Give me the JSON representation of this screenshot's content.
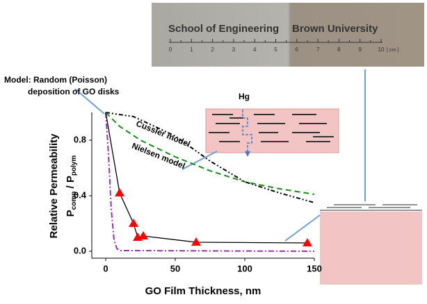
{
  "chart_data": {
    "type": "line",
    "annotation_model": [
      "Model: Random (Poisson)",
      "deposition of GO disks"
    ],
    "annotation_hg": "Hg",
    "xlabel": "GO Film Thickness, nm",
    "ylabel": "Relative Permeability",
    "ylabel2": [
      "P",
      "comp",
      " / P",
      "polym"
    ],
    "xlim": [
      -10,
      150
    ],
    "ylim": [
      -0.05,
      1.0
    ],
    "xticks": [
      0,
      50,
      100,
      150
    ],
    "yticks": [
      {
        "value": 0,
        "label": "0.0"
      },
      0.4,
      0.8
    ],
    "series": [
      {
        "name": "Cussler model",
        "color": "#000000",
        "dash": "6 3 2 3 2 3",
        "x": [
          0,
          20,
          50,
          75,
          100,
          125,
          150
        ],
        "values": [
          1.0,
          0.97,
          0.83,
          0.65,
          0.5,
          0.42,
          0.35
        ]
      },
      {
        "name": "Nielsen model",
        "color": "#1a8a1a",
        "dash": "8 5",
        "x": [
          0,
          10,
          25,
          50,
          75,
          100,
          125,
          150
        ],
        "values": [
          1.0,
          0.9,
          0.8,
          0.68,
          0.58,
          0.5,
          0.45,
          0.41
        ]
      },
      {
        "color": "#9933aa",
        "dash": "8 3 2 3",
        "x": [
          0,
          2,
          4,
          6,
          8,
          10,
          150
        ],
        "values": [
          1.0,
          0.7,
          0.3,
          0.08,
          0.02,
          0.005,
          0
        ]
      },
      {
        "color": "#000000",
        "x": [
          0,
          10,
          20,
          23,
          27,
          65,
          145
        ],
        "values": [
          1.0,
          0.42,
          0.2,
          0.1,
          0.11,
          0.065,
          0.06
        ]
      },
      {
        "color": "#ff0000",
        "marker": "triangle",
        "x": [
          10,
          20,
          23,
          27,
          65,
          145
        ],
        "values": [
          0.42,
          0.2,
          0.1,
          0.11,
          0.065,
          0.06
        ]
      }
    ]
  },
  "photo": {
    "left_text": "School of Engineering",
    "right_text": "Brown University",
    "ruler_labels": [
      "0",
      "1",
      "2",
      "3",
      "4",
      "5",
      "6",
      "7",
      "8",
      "9",
      "10"
    ],
    "unit": "[ cm ]"
  }
}
